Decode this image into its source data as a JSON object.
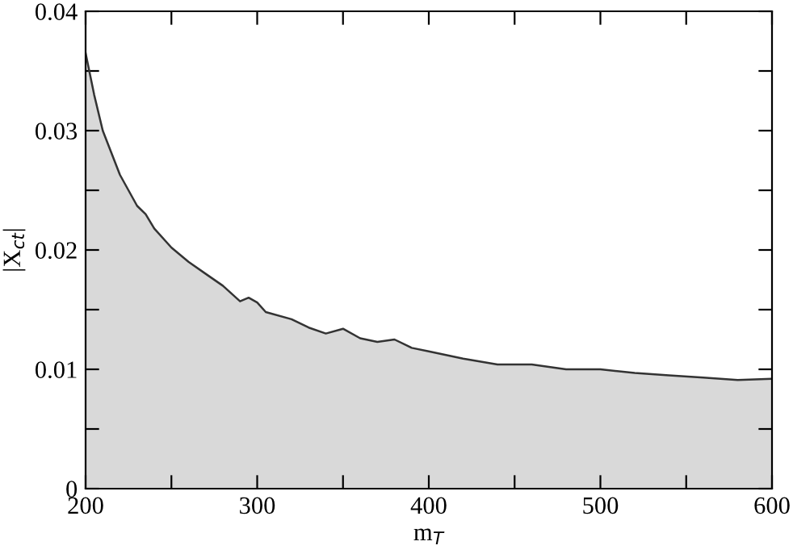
{
  "chart_data": {
    "type": "area",
    "xlabel": "m$_{T}$",
    "ylabel": "|X$_{ct}$|",
    "x": [
      200,
      205,
      210,
      220,
      225,
      230,
      235,
      240,
      250,
      260,
      270,
      280,
      290,
      295,
      300,
      305,
      320,
      330,
      340,
      350,
      360,
      370,
      380,
      390,
      400,
      420,
      440,
      460,
      480,
      500,
      520,
      540,
      560,
      580,
      600
    ],
    "series": [
      {
        "color": "#d9d9d9",
        "values": [
          0.0365,
          0.033,
          0.03,
          0.0263,
          0.025,
          0.0237,
          0.023,
          0.0218,
          0.0202,
          0.019,
          0.018,
          0.017,
          0.0157,
          0.016,
          0.0156,
          0.0148,
          0.0142,
          0.0135,
          0.013,
          0.0134,
          0.0126,
          0.0123,
          0.0125,
          0.0118,
          0.0115,
          0.0109,
          0.0104,
          0.0104,
          0.01,
          0.01,
          0.0097,
          0.0095,
          0.0093,
          0.0091,
          0.0092
        ]
      }
    ],
    "xlim": [
      200,
      600
    ],
    "ylim": [
      0,
      0.04
    ],
    "xticks": [
      200,
      {
        "value": 250,
        "label": null
      },
      300,
      {
        "value": 350,
        "label": null
      },
      400,
      {
        "value": 450,
        "label": null
      },
      500,
      {
        "value": 550,
        "label": null
      },
      600
    ],
    "yticks": [
      0,
      {
        "value": 0.005,
        "label": null
      },
      0.01,
      {
        "value": 0.015,
        "label": null
      },
      0.02,
      {
        "value": 0.025,
        "label": null
      },
      0.03,
      {
        "value": 0.035,
        "label": null
      },
      0.04
    ],
    "grid": false,
    "legend": false
  }
}
